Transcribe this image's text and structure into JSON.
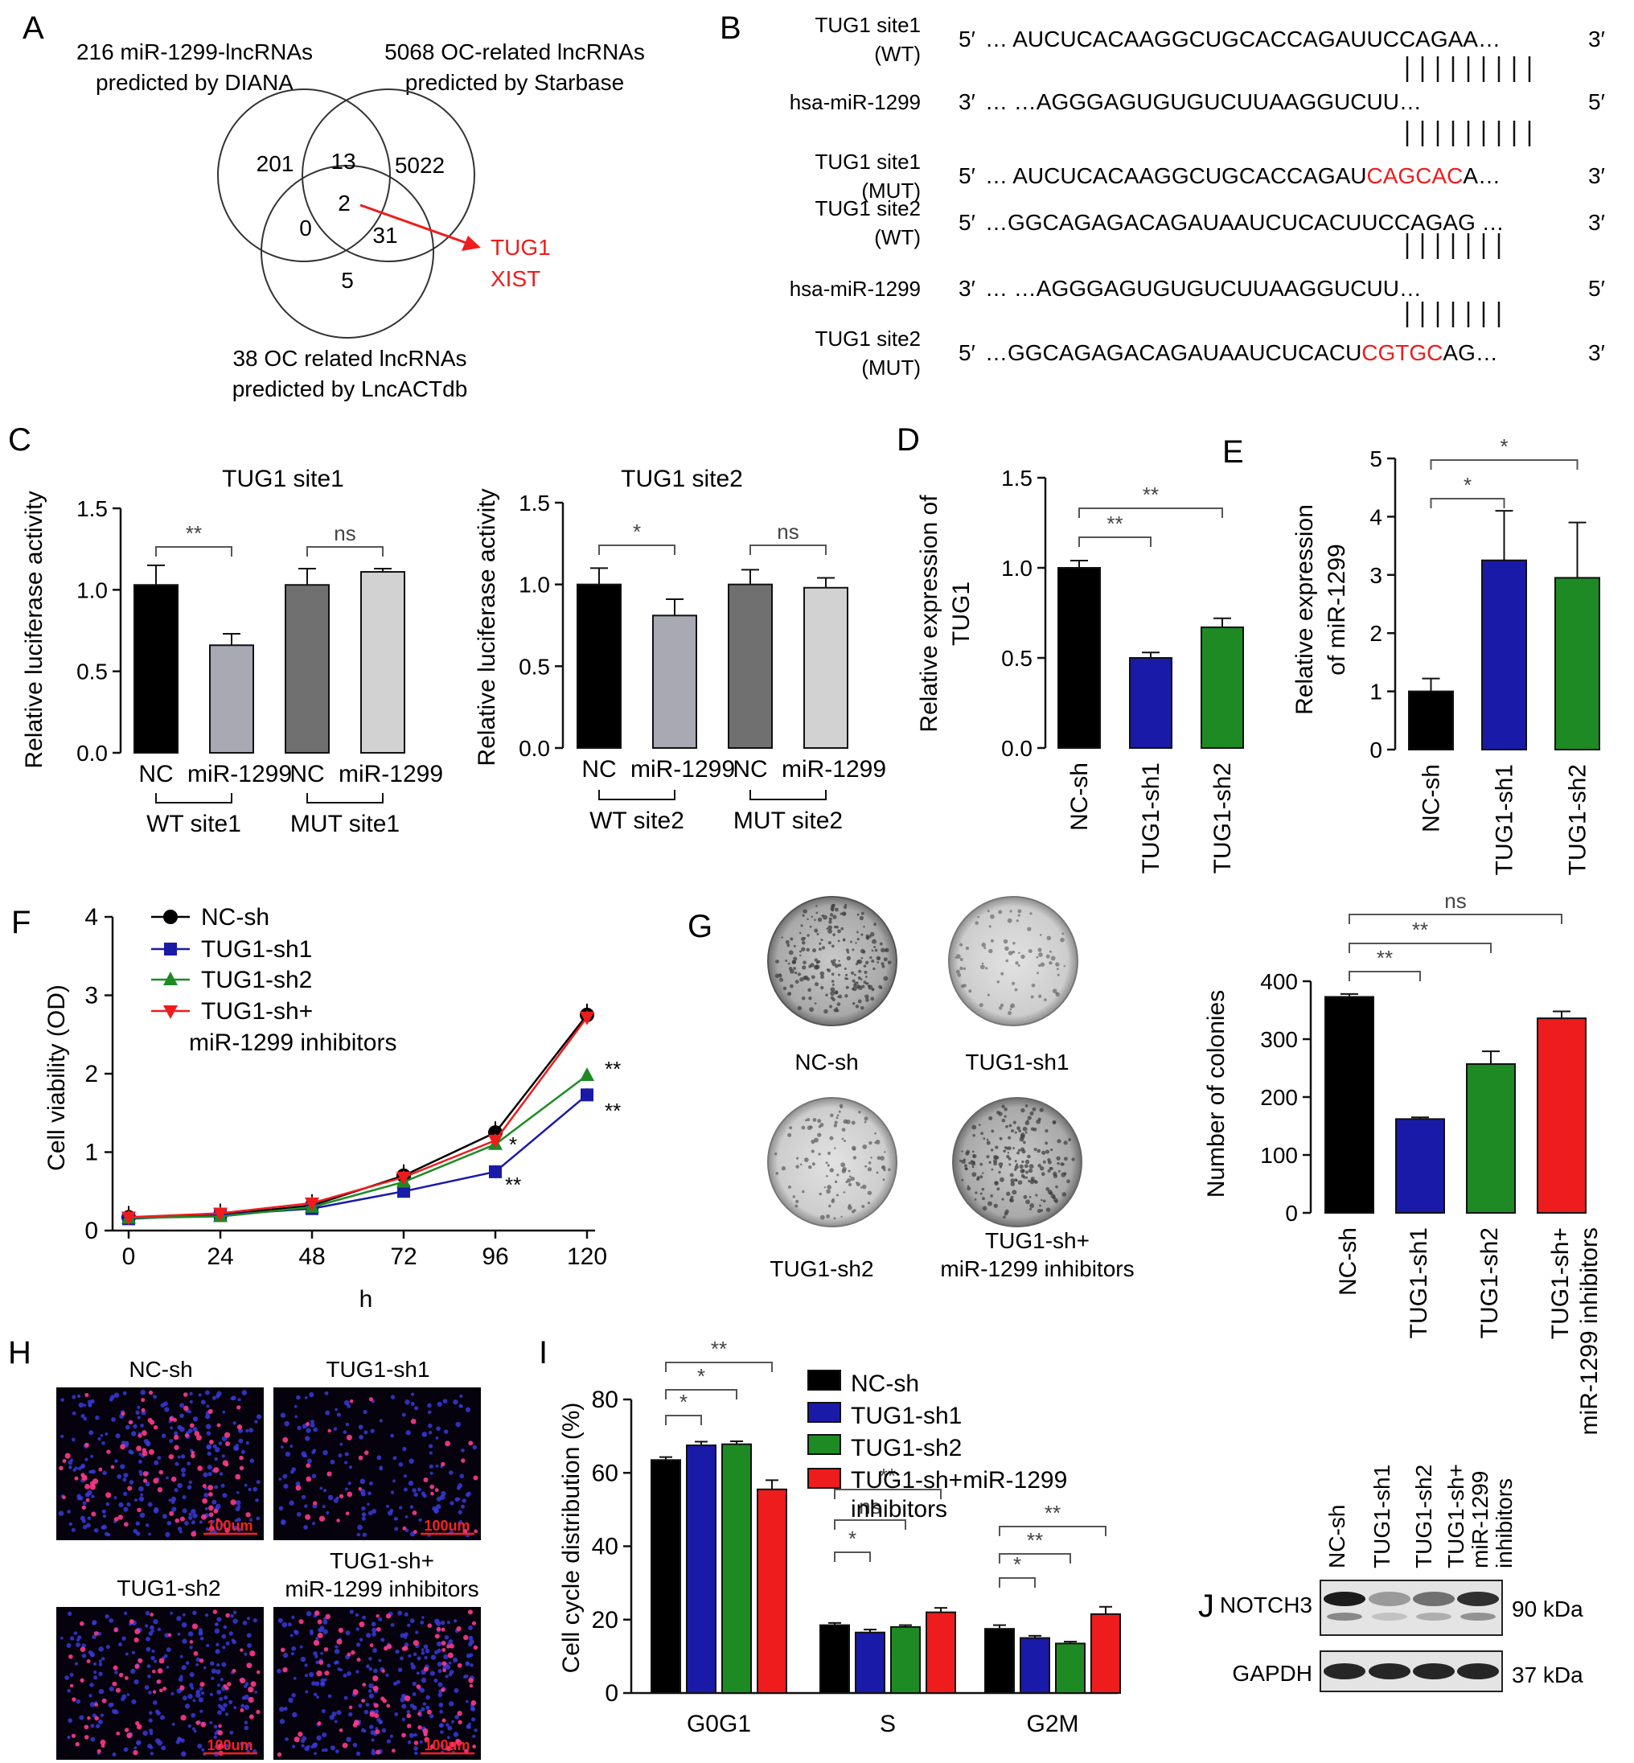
{
  "colors": {
    "black": "#000000",
    "blue": "#1a1aa8",
    "green": "#1e8a24",
    "red": "#ee1c1c",
    "dgray": "#707070",
    "lgray": "#d2d2d2",
    "mgray": "#a9a9b4"
  },
  "panels": {
    "A": "A",
    "B": "B",
    "C": "C",
    "D": "D",
    "E": "E",
    "F": "F",
    "G": "G",
    "H": "H",
    "I": "I",
    "J": "J"
  },
  "venn": {
    "set1": [
      "216 miR-1299-lncRNAs",
      "predicted by DIANA"
    ],
    "set2": [
      "5068 OC-related lncRNAs",
      "predicted by Starbase"
    ],
    "set3": [
      "38 OC related lncRNAs",
      "predicted by LncACTdb"
    ],
    "regions": {
      "only1": "201",
      "r12": "13",
      "only2": "5022",
      "r13": "0",
      "r123": "2",
      "r23": "31",
      "only3": "5"
    },
    "hits": [
      "TUG1",
      "XIST"
    ]
  },
  "seq": {
    "rows": [
      {
        "label": [
          "TUG1 site1",
          "(WT)"
        ],
        "p5": "5′",
        "seq": "… AUCUCACAAGGCUGCACCAGAUUCCAGAA…",
        "red": "",
        "tail": "",
        "p3": "3′"
      },
      {
        "label": [
          "hsa-miR-1299"
        ],
        "p5": "3′",
        "seq": "…              …AGGGAGUGUGUCUUAAGGUCUU…",
        "red": "",
        "tail": "",
        "p3": "5′"
      },
      {
        "label": [
          "TUG1 site1",
          "(MUT)"
        ],
        "p5": "5′",
        "seq": "… AUCUCACAAGGCUGCACCAGAU",
        "red": "CAGCAC",
        "tail": "A…",
        "p3": "3′"
      },
      {
        "label": [
          "TUG1 site2",
          "(WT)"
        ],
        "p5": "5′",
        "seq": "…GGCAGAGACAGAUAAUCUCACUUCCAGAG …",
        "red": "",
        "tail": "",
        "p3": "3′"
      },
      {
        "label": [
          "hsa-miR-1299"
        ],
        "p5": "3′",
        "seq": "…              …AGGGAGUGUGUCUUAAGGUCUU…",
        "red": "",
        "tail": "",
        "p3": "5′"
      },
      {
        "label": [
          "TUG1 site2",
          "(MUT)"
        ],
        "p5": "5′",
        "seq": "…GGCAGAGACAGAUAAUCUCACU",
        "red": "CGTGC",
        "tail": "AG…",
        "p3": "3′"
      }
    ]
  },
  "chart_data": [
    {
      "panel": "C",
      "type": "bar",
      "title": "TUG1 site1",
      "ylabel": "Relative luciferase activity",
      "ylim": [
        0,
        1.5
      ],
      "yticks": [
        "0.0",
        "0.5",
        "1.0",
        "1.5"
      ],
      "categories": [
        "NC",
        "miR-1299",
        "NC",
        "miR-1299"
      ],
      "values": [
        1.03,
        0.66,
        1.03,
        1.11
      ],
      "errors": [
        0.12,
        0.07,
        0.1,
        0.02
      ],
      "groups": [
        "WT site1",
        "MUT site1"
      ],
      "sig": [
        "**",
        "ns"
      ]
    },
    {
      "panel": "C2",
      "type": "bar",
      "title": "TUG1 site2",
      "ylabel": "Relative luciferase activity",
      "ylim": [
        0,
        1.5
      ],
      "yticks": [
        "0.0",
        "0.5",
        "1.0",
        "1.5"
      ],
      "categories": [
        "NC",
        "miR-1299",
        "NC",
        "miR-1299"
      ],
      "values": [
        1.0,
        0.81,
        1.0,
        0.98
      ],
      "errors": [
        0.1,
        0.1,
        0.09,
        0.06
      ],
      "groups": [
        "WT site2",
        "MUT site2"
      ],
      "sig": [
        "*",
        "ns"
      ]
    },
    {
      "panel": "D",
      "type": "bar",
      "ylabel": [
        "Relative expression of",
        "TUG1"
      ],
      "ylim": [
        0,
        1.5
      ],
      "yticks": [
        "0.0",
        "0.5",
        "1.0",
        "1.5"
      ],
      "categories": [
        "NC-sh",
        "TUG1-sh1",
        "TUG1-sh2"
      ],
      "values": [
        1.0,
        0.5,
        0.67
      ],
      "errors": [
        0.04,
        0.03,
        0.05
      ],
      "sig": [
        "**",
        "**"
      ]
    },
    {
      "panel": "E",
      "type": "bar",
      "ylabel": [
        "Relative expression",
        "of miR-1299"
      ],
      "ylim": [
        0,
        5
      ],
      "yticks": [
        "0",
        "1",
        "2",
        "3",
        "4",
        "5"
      ],
      "categories": [
        "NC-sh",
        "TUG1-sh1",
        "TUG1-sh2"
      ],
      "values": [
        1.0,
        3.25,
        2.95
      ],
      "errors": [
        0.22,
        0.85,
        0.95
      ],
      "sig": [
        "*",
        "*"
      ]
    },
    {
      "panel": "F",
      "type": "line",
      "xlabel": "h",
      "ylabel": "Cell viability (OD)",
      "ylim": [
        0,
        4
      ],
      "x": [
        0,
        24,
        48,
        72,
        96,
        120
      ],
      "yticks": [
        "0",
        "1",
        "2",
        "3",
        "4"
      ],
      "series": [
        {
          "name": "NC-sh",
          "values": [
            0.17,
            0.2,
            0.32,
            0.7,
            1.25,
            2.75
          ]
        },
        {
          "name": "TUG1-sh1",
          "values": [
            0.15,
            0.2,
            0.28,
            0.5,
            0.75,
            1.73
          ]
        },
        {
          "name": "TUG1-sh2",
          "values": [
            0.16,
            0.18,
            0.3,
            0.62,
            1.1,
            1.98
          ]
        },
        {
          "name": "TUG1-sh+ miR-1299 inhibitors",
          "values": [
            0.17,
            0.22,
            0.35,
            0.68,
            1.15,
            2.72
          ]
        }
      ],
      "annotations": [
        "**",
        "**",
        "*",
        "**"
      ]
    },
    {
      "panel": "G",
      "type": "bar",
      "ylabel": "Number of colonies",
      "ylim": [
        0,
        400
      ],
      "yticks": [
        "0",
        "100",
        "200",
        "300",
        "400"
      ],
      "categories": [
        "NC-sh",
        "TUG1-sh1",
        "TUG1-sh2",
        "TUG1-sh+ miR-1299 inhibitors"
      ],
      "values": [
        373,
        162,
        257,
        336
      ],
      "errors": [
        5,
        3,
        22,
        12
      ],
      "sig": [
        "**",
        "**",
        "ns"
      ]
    },
    {
      "panel": "I",
      "type": "bar",
      "ylabel": "Cell cycle distribution (%)",
      "ylim": [
        0,
        80
      ],
      "yticks": [
        "0",
        "20",
        "40",
        "60",
        "80"
      ],
      "categories": [
        "G0G1",
        "S",
        "G2M"
      ],
      "series": [
        {
          "name": "NC-sh",
          "values": [
            63.5,
            18.5,
            17.5
          ],
          "errors": [
            0.8,
            0.6,
            1.0
          ]
        },
        {
          "name": "TUG1-sh1",
          "values": [
            67.5,
            16.5,
            15.0
          ],
          "errors": [
            1.0,
            0.8,
            0.6
          ]
        },
        {
          "name": "TUG1-sh2",
          "values": [
            67.8,
            18.0,
            13.5
          ],
          "errors": [
            0.8,
            0.5,
            0.5
          ]
        },
        {
          "name": "TUG1-sh+miR-1299 inhibitors",
          "values": [
            55.5,
            22.0,
            21.5
          ],
          "errors": [
            2.5,
            1.2,
            2.0
          ]
        }
      ],
      "sig": [
        [
          "*",
          "*",
          "**"
        ],
        [
          "*",
          "ns",
          "**"
        ],
        [
          "*",
          "**",
          "**"
        ]
      ]
    }
  ],
  "G_images": {
    "labels": [
      "NC-sh",
      "TUG1-sh1",
      "TUG1-sh2",
      "TUG1-sh+",
      "miR-1299 inhibitors"
    ]
  },
  "H_images": {
    "labels": [
      "NC-sh",
      "TUG1-sh1",
      "TUG1-sh2",
      "TUG1-sh+",
      "miR-1299 inhibitors"
    ],
    "scale": "100um"
  },
  "J_blot": {
    "lanes": [
      "NC-sh",
      "TUG1-sh1",
      "TUG1-sh2",
      "TUG1-sh+",
      "miR-1299",
      "inhibitors"
    ],
    "rows": [
      {
        "name": "NOTCH3",
        "size": "90 kDa"
      },
      {
        "name": "GAPDH",
        "size": "37 kDa"
      }
    ]
  }
}
